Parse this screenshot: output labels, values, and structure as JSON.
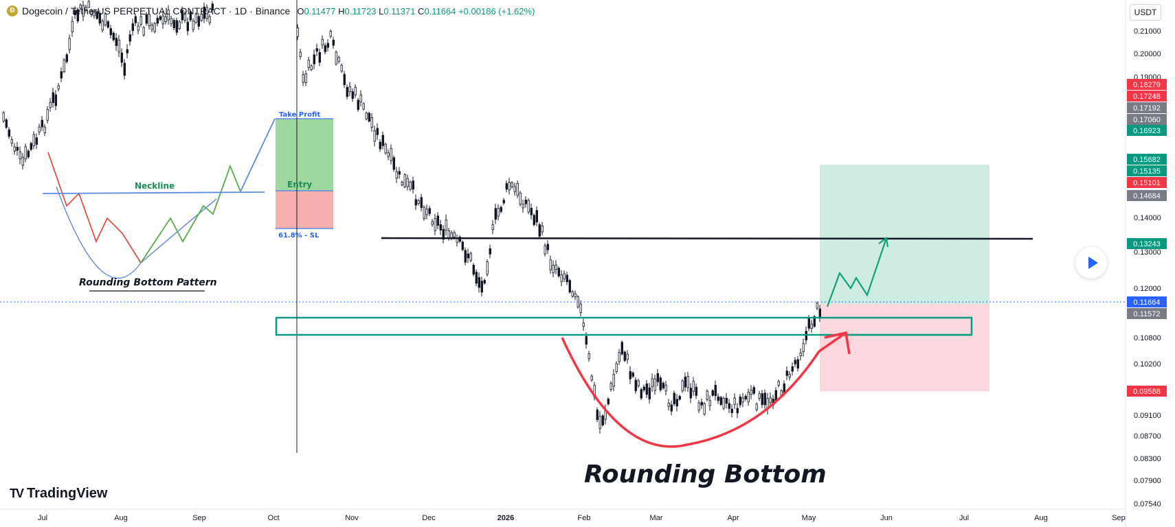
{
  "header": {
    "coin_icon": "dogecoin-icon",
    "title": "Dogecoin / TetherUS PERPETUAL CONTRACT · 1D · Binance",
    "open_label": "O",
    "open": "0.11477",
    "high_label": "H",
    "high": "0.11723",
    "low_label": "L",
    "low": "0.11371",
    "close_label": "C",
    "close": "0.11664",
    "change": "+0.00186 (+1.62%)"
  },
  "currency": "USDT",
  "logo": {
    "mark": "TV",
    "text": "TradingView"
  },
  "colors": {
    "up": "#089981",
    "down": "#f23645",
    "candle_body": "#131722",
    "neckline": "#1e8c5a",
    "sl": "#f23645",
    "accent": "#2962ff"
  },
  "chart_data": {
    "type": "candlestick",
    "yaxis_ticks": [
      "0.21000",
      "0.20000",
      "0.19000",
      "0.14000",
      "0.13000",
      "0.12000",
      "0.10800",
      "0.10200",
      "0.09100",
      "0.08700",
      "0.08300",
      "0.07900",
      "0.07540"
    ],
    "xaxis_ticks": [
      "Jul",
      "Aug",
      "Sep",
      "Oct",
      "Nov",
      "Dec",
      "2026",
      "Feb",
      "Mar",
      "Apr",
      "May",
      "Jun",
      "Jul",
      "Aug",
      "Sep"
    ],
    "price_badges": [
      {
        "value": "0.18279",
        "color": "#f23645"
      },
      {
        "value": "0.17248",
        "color": "#f23645"
      },
      {
        "value": "0.17192",
        "color": "#787b86"
      },
      {
        "value": "0.17060",
        "color": "#787b86"
      },
      {
        "value": "0.16923",
        "color": "#089981"
      },
      {
        "value": "0.15682",
        "color": "#089981"
      },
      {
        "value": "0.15135",
        "color": "#089981"
      },
      {
        "value": "0.15101",
        "color": "#f23645"
      },
      {
        "value": "0.14684",
        "color": "#787b86"
      },
      {
        "value": "0.13243",
        "color": "#089981"
      },
      {
        "value": "0.11664",
        "color": "#2962ff"
      },
      {
        "value": "0.11572",
        "color": "#787b86"
      },
      {
        "value": "0.09588",
        "color": "#f23645"
      }
    ],
    "last_price": "0.11664",
    "resistance": "0.13243",
    "target": "0.15682",
    "stop": "0.09588",
    "annotations": {
      "main_label": "Rounding Bottom",
      "inset_title": "Rounding Bottom Pattern",
      "neckline": "Neckline",
      "take_profit": "Take Profit",
      "entry": "Entry",
      "sl": "61.8% - SL"
    }
  }
}
